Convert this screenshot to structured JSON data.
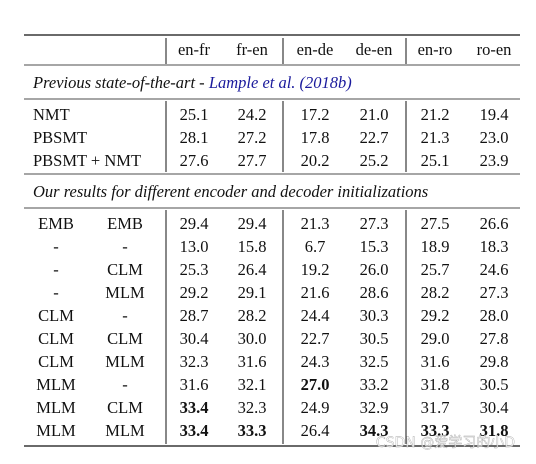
{
  "table": {
    "columns": [
      "en-fr",
      "fr-en",
      "en-de",
      "de-en",
      "en-ro",
      "ro-en"
    ],
    "sections": [
      {
        "title": "Previous state-of-the-art -",
        "cite": "Lample et al. (2018b)",
        "rows": [
          {
            "labels": [
              "NMT"
            ],
            "values": [
              "25.1",
              "24.2",
              "17.2",
              "21.0",
              "21.2",
              "19.4"
            ],
            "bold": []
          },
          {
            "labels": [
              "PBSMT"
            ],
            "values": [
              "28.1",
              "27.2",
              "17.8",
              "22.7",
              "21.3",
              "23.0"
            ],
            "bold": []
          },
          {
            "labels": [
              "PBSMT + NMT"
            ],
            "values": [
              "27.6",
              "27.7",
              "20.2",
              "25.2",
              "25.1",
              "23.9"
            ],
            "bold": []
          }
        ]
      },
      {
        "title": "Our results for different encoder and decoder initializations",
        "rows": [
          {
            "labels": [
              "EMB",
              "EMB"
            ],
            "values": [
              "29.4",
              "29.4",
              "21.3",
              "27.3",
              "27.5",
              "26.6"
            ],
            "bold": []
          },
          {
            "labels": [
              "-",
              "-"
            ],
            "values": [
              "13.0",
              "15.8",
              "6.7",
              "15.3",
              "18.9",
              "18.3"
            ],
            "bold": []
          },
          {
            "labels": [
              "-",
              "CLM"
            ],
            "values": [
              "25.3",
              "26.4",
              "19.2",
              "26.0",
              "25.7",
              "24.6"
            ],
            "bold": []
          },
          {
            "labels": [
              "-",
              "MLM"
            ],
            "values": [
              "29.2",
              "29.1",
              "21.6",
              "28.6",
              "28.2",
              "27.3"
            ],
            "bold": []
          },
          {
            "labels": [
              "CLM",
              "-"
            ],
            "values": [
              "28.7",
              "28.2",
              "24.4",
              "30.3",
              "29.2",
              "28.0"
            ],
            "bold": []
          },
          {
            "labels": [
              "CLM",
              "CLM"
            ],
            "values": [
              "30.4",
              "30.0",
              "22.7",
              "30.5",
              "29.0",
              "27.8"
            ],
            "bold": []
          },
          {
            "labels": [
              "CLM",
              "MLM"
            ],
            "values": [
              "32.3",
              "31.6",
              "24.3",
              "32.5",
              "31.6",
              "29.8"
            ],
            "bold": []
          },
          {
            "labels": [
              "MLM",
              "-"
            ],
            "values": [
              "31.6",
              "32.1",
              "27.0",
              "33.2",
              "31.8",
              "30.5"
            ],
            "bold": [
              2
            ]
          },
          {
            "labels": [
              "MLM",
              "CLM"
            ],
            "values": [
              "33.4",
              "32.3",
              "24.9",
              "32.9",
              "31.7",
              "30.4"
            ],
            "bold": [
              0
            ]
          },
          {
            "labels": [
              "MLM",
              "MLM"
            ],
            "values": [
              "33.4",
              "33.3",
              "26.4",
              "34.3",
              "33.3",
              "31.8"
            ],
            "bold": [
              0,
              1,
              3,
              4,
              5
            ]
          }
        ]
      }
    ]
  },
  "watermark": "CSDN @爱学习的小D"
}
